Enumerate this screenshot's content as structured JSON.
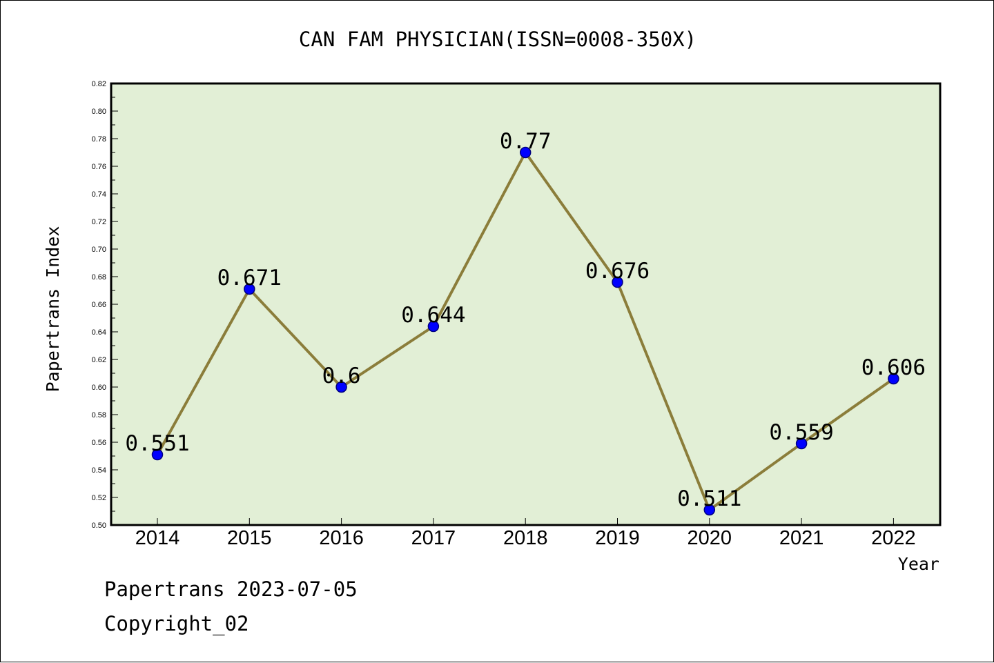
{
  "chart_data": {
    "type": "line",
    "title": "CAN FAM PHYSICIAN(ISSN=0008-350X)",
    "xlabel": "Year",
    "ylabel": "Papertrans Index",
    "categories": [
      "2014",
      "2015",
      "2016",
      "2017",
      "2018",
      "2019",
      "2020",
      "2021",
      "2022"
    ],
    "series": [
      {
        "values": [
          0.551,
          0.671,
          0.6,
          0.644,
          0.77,
          0.676,
          0.511,
          0.559,
          0.606
        ],
        "labels": [
          "0.551",
          "0.671",
          "0.6",
          "0.644",
          "0.77",
          "0.676",
          "0.511",
          "0.559",
          "0.606"
        ]
      }
    ],
    "ylim": [
      0.5,
      0.82
    ],
    "yticks": [
      "0.50",
      "0.52",
      "0.54",
      "0.56",
      "0.58",
      "0.60",
      "0.62",
      "0.64",
      "0.66",
      "0.68",
      "0.70",
      "0.72",
      "0.74",
      "0.76",
      "0.78",
      "0.80",
      "0.82"
    ],
    "grid": false,
    "legend": "none",
    "colors": {
      "plot_background": "#e2efd6",
      "line": "#8b7d3a",
      "marker_fill": "#0000ff",
      "marker_stroke": "#000080"
    }
  },
  "footer": {
    "date_line": "Papertrans 2023-07-05",
    "copyright": "Copyright_02"
  }
}
